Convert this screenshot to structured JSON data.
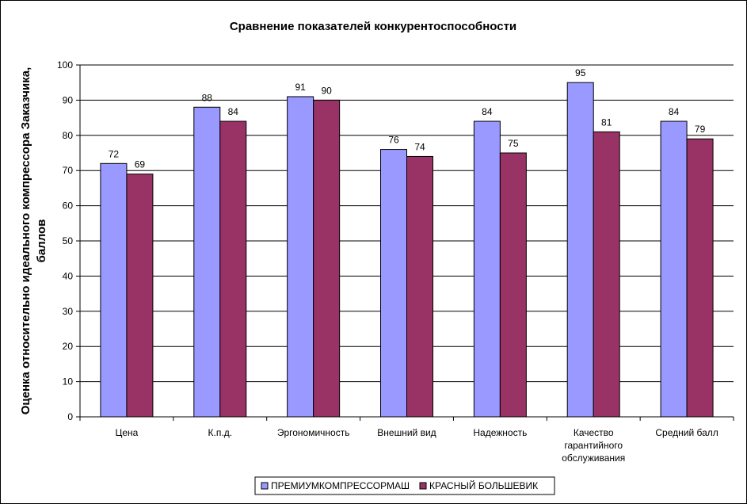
{
  "chart_data": {
    "type": "bar",
    "title": "Сравнение показателей конкурентоспособности",
    "xlabel": "",
    "ylabel_lines": [
      "Оценка относительно идеального компрессора Заказчика,",
      "баллов"
    ],
    "ylim": [
      0,
      100
    ],
    "yticks": [
      0,
      10,
      20,
      30,
      40,
      50,
      60,
      70,
      80,
      90,
      100
    ],
    "grid": true,
    "legend_position": "bottom",
    "categories": [
      [
        "Цена"
      ],
      [
        "К.п.д."
      ],
      [
        "Эргономичность"
      ],
      [
        "Внешний вид"
      ],
      [
        "Надежность"
      ],
      [
        "Качество",
        "гарантийного",
        "обслуживания"
      ],
      [
        "Средний балл"
      ]
    ],
    "series": [
      {
        "name": "ПРЕМИУМКОМПРЕССОРМАШ",
        "color": "#9999ff",
        "values": [
          72,
          88,
          91,
          76,
          84,
          95,
          84
        ]
      },
      {
        "name": "КРАСНЫЙ БОЛЬШЕВИК",
        "color": "#993366",
        "values": [
          69,
          84,
          90,
          74,
          75,
          81,
          79
        ]
      }
    ]
  }
}
